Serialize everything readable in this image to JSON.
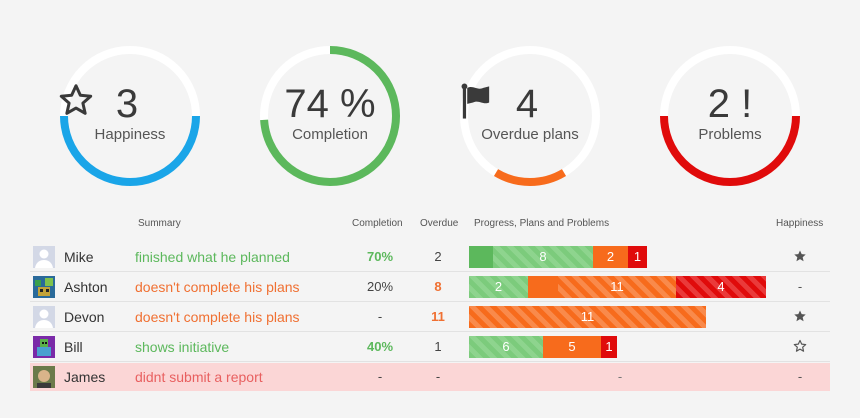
{
  "colors": {
    "blue": "#1aa5e8",
    "green": "#5cb85c",
    "orange": "#f76b1c",
    "red": "#e00b0b",
    "light_green": "#8fd38f",
    "ring_bg": "#ffffff"
  },
  "kpis": [
    {
      "value": "3",
      "icon": "star-icon",
      "label": "Happiness",
      "fraction": 0.5
    },
    {
      "value": "74 %",
      "icon": "",
      "label": "Completion",
      "fraction": 0.74
    },
    {
      "value": "4",
      "icon": "flag-icon",
      "label": "Overdue plans",
      "fraction": 0.17
    },
    {
      "value": "2 !",
      "icon": "",
      "label": "Problems",
      "fraction": 0.5
    }
  ],
  "headers": {
    "summary": "Summary",
    "completion": "Completion",
    "overdue": "Overdue",
    "progress": "Progress, Plans and Problems",
    "happiness": "Happiness"
  },
  "rows": [
    {
      "name": "Mike",
      "summary": "finished what he planned",
      "tone": "good",
      "completion": "70%",
      "completion_good": true,
      "overdue": "2",
      "overdue_warn": false,
      "progress": {
        "done": 8,
        "planned": 2,
        "problems": 1
      },
      "happiness": "star-filled-icon"
    },
    {
      "name": "Ashton",
      "summary": "doesn't complete his plans",
      "tone": "warn",
      "completion": "20%",
      "completion_good": false,
      "overdue": "8",
      "overdue_warn": true,
      "progress": {
        "done": 2,
        "planned": 11,
        "problems": 4
      },
      "happiness": "-"
    },
    {
      "name": "Devon",
      "summary": "doesn't complete his plans",
      "tone": "warn",
      "completion": "-",
      "completion_good": false,
      "overdue": "11",
      "overdue_warn": true,
      "progress": {
        "done": 0,
        "planned": 11,
        "problems": 0
      },
      "happiness": "star-filled-icon"
    },
    {
      "name": "Bill",
      "summary": "shows initiative",
      "tone": "good",
      "completion": "40%",
      "completion_good": true,
      "overdue": "1",
      "overdue_warn": false,
      "progress": {
        "done": 6,
        "planned": 5,
        "problems": 1
      },
      "happiness": "star-outline-icon"
    },
    {
      "name": "James",
      "summary": "didnt submit a report",
      "tone": "bad",
      "completion": "-",
      "completion_good": false,
      "overdue": "-",
      "overdue_warn": false,
      "progress": null,
      "progress_text": "-",
      "happiness": "-",
      "problem": true
    }
  ]
}
